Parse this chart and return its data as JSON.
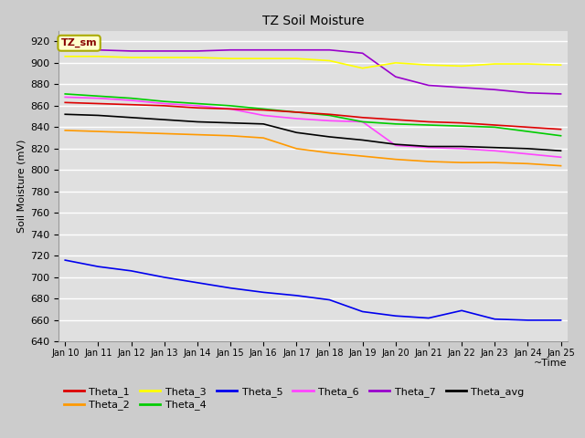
{
  "title": "TZ Soil Moisture",
  "xlabel": "~Time",
  "ylabel": "Soil Moisture (mV)",
  "ylim": [
    640,
    930
  ],
  "background_color": "#cccccc",
  "plot_bg_color": "#e0e0e0",
  "grid_color": "#ffffff",
  "tick_labels": [
    "Jan 10",
    "Jan 11",
    "Jan 12",
    "Jan 13",
    "Jan 14",
    "Jan 15",
    "Jan 16",
    "Jan 17",
    "Jan 18",
    "Jan 19",
    "Jan 20",
    "Jan 21",
    "Jan 22",
    "Jan 23",
    "Jan 24",
    "Jan 25"
  ],
  "legend_label": "TZ_sm",
  "legend_box_facecolor": "#ffffcc",
  "legend_box_edgecolor": "#aaaa00",
  "legend_text_color": "#880000",
  "series_order": [
    "Theta_7",
    "Theta_3",
    "Theta_6",
    "Theta_4",
    "Theta_1",
    "Theta_avg",
    "Theta_2",
    "Theta_5"
  ],
  "series": {
    "Theta_1": {
      "color": "#dd0000",
      "points": [
        [
          0,
          863
        ],
        [
          1,
          862
        ],
        [
          2,
          861
        ],
        [
          3,
          860
        ],
        [
          4,
          858
        ],
        [
          5,
          857
        ],
        [
          6,
          856
        ],
        [
          7,
          854
        ],
        [
          8,
          852
        ],
        [
          9,
          849
        ],
        [
          10,
          847
        ],
        [
          11,
          845
        ],
        [
          12,
          844
        ],
        [
          13,
          842
        ],
        [
          14,
          840
        ],
        [
          15,
          838
        ]
      ]
    },
    "Theta_2": {
      "color": "#ff9900",
      "points": [
        [
          0,
          837
        ],
        [
          1,
          836
        ],
        [
          2,
          835
        ],
        [
          3,
          834
        ],
        [
          4,
          833
        ],
        [
          5,
          832
        ],
        [
          6,
          830
        ],
        [
          7,
          820
        ],
        [
          8,
          816
        ],
        [
          9,
          813
        ],
        [
          10,
          810
        ],
        [
          11,
          808
        ],
        [
          12,
          807
        ],
        [
          13,
          807
        ],
        [
          14,
          806
        ],
        [
          15,
          804
        ]
      ]
    },
    "Theta_3": {
      "color": "#ffff00",
      "points": [
        [
          0,
          906
        ],
        [
          1,
          906
        ],
        [
          2,
          905
        ],
        [
          3,
          905
        ],
        [
          4,
          905
        ],
        [
          5,
          904
        ],
        [
          6,
          904
        ],
        [
          7,
          904
        ],
        [
          8,
          902
        ],
        [
          9,
          895
        ],
        [
          10,
          900
        ],
        [
          11,
          898
        ],
        [
          12,
          897
        ],
        [
          13,
          899
        ],
        [
          14,
          899
        ],
        [
          15,
          898
        ]
      ]
    },
    "Theta_4": {
      "color": "#00cc00",
      "points": [
        [
          0,
          871
        ],
        [
          1,
          869
        ],
        [
          2,
          867
        ],
        [
          3,
          864
        ],
        [
          4,
          862
        ],
        [
          5,
          860
        ],
        [
          6,
          857
        ],
        [
          7,
          854
        ],
        [
          8,
          851
        ],
        [
          9,
          845
        ],
        [
          10,
          843
        ],
        [
          11,
          842
        ],
        [
          12,
          841
        ],
        [
          13,
          840
        ],
        [
          14,
          836
        ],
        [
          15,
          832
        ]
      ]
    },
    "Theta_5": {
      "color": "#0000ee",
      "points": [
        [
          0,
          716
        ],
        [
          1,
          710
        ],
        [
          2,
          706
        ],
        [
          3,
          700
        ],
        [
          4,
          695
        ],
        [
          5,
          690
        ],
        [
          6,
          686
        ],
        [
          7,
          683
        ],
        [
          8,
          679
        ],
        [
          9,
          668
        ],
        [
          10,
          664
        ],
        [
          11,
          662
        ],
        [
          12,
          669
        ],
        [
          13,
          661
        ],
        [
          14,
          660
        ],
        [
          15,
          660
        ]
      ]
    },
    "Theta_6": {
      "color": "#ff44ff",
      "points": [
        [
          0,
          868
        ],
        [
          1,
          867
        ],
        [
          2,
          865
        ],
        [
          3,
          862
        ],
        [
          4,
          860
        ],
        [
          5,
          857
        ],
        [
          6,
          851
        ],
        [
          7,
          848
        ],
        [
          8,
          846
        ],
        [
          9,
          845
        ],
        [
          10,
          823
        ],
        [
          11,
          821
        ],
        [
          12,
          820
        ],
        [
          13,
          818
        ],
        [
          14,
          815
        ],
        [
          15,
          812
        ]
      ]
    },
    "Theta_7": {
      "color": "#9900cc",
      "points": [
        [
          0,
          912
        ],
        [
          1,
          912
        ],
        [
          2,
          911
        ],
        [
          3,
          911
        ],
        [
          4,
          911
        ],
        [
          5,
          912
        ],
        [
          6,
          912
        ],
        [
          7,
          912
        ],
        [
          8,
          912
        ],
        [
          9,
          909
        ],
        [
          10,
          887
        ],
        [
          11,
          879
        ],
        [
          12,
          877
        ],
        [
          13,
          875
        ],
        [
          14,
          872
        ],
        [
          15,
          871
        ]
      ]
    },
    "Theta_avg": {
      "color": "#000000",
      "points": [
        [
          0,
          852
        ],
        [
          1,
          851
        ],
        [
          2,
          849
        ],
        [
          3,
          847
        ],
        [
          4,
          845
        ],
        [
          5,
          844
        ],
        [
          6,
          843
        ],
        [
          7,
          835
        ],
        [
          8,
          831
        ],
        [
          9,
          828
        ],
        [
          10,
          824
        ],
        [
          11,
          822
        ],
        [
          12,
          822
        ],
        [
          13,
          821
        ],
        [
          14,
          820
        ],
        [
          15,
          818
        ]
      ]
    }
  },
  "legend_row1": [
    "Theta_1",
    "Theta_2",
    "Theta_3",
    "Theta_4",
    "Theta_5",
    "Theta_6"
  ],
  "legend_row2": [
    "Theta_7",
    "Theta_avg"
  ]
}
